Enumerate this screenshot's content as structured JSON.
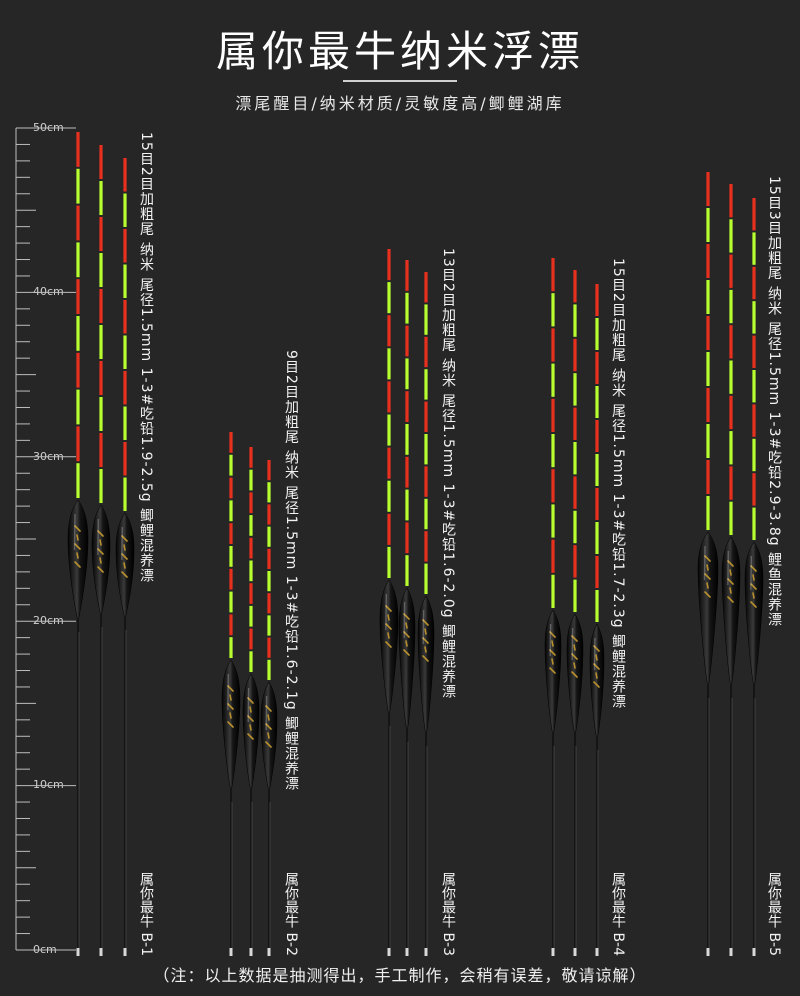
{
  "header": {
    "title": "属你最牛纳米浮漂",
    "subtitle": "漂尾醒目/纳米材质/灵敏度高/鲫鲤湖库"
  },
  "ruler": {
    "labels": [
      "50cm",
      "40cm",
      "30cm",
      "20cm",
      "10cm",
      "0cm"
    ]
  },
  "floats": [
    {
      "spec": "15目2目加粗尾 纳米 尾径1.5mm 1-3#吃铅1.9-2.5g 鲫鲤混养漂",
      "model": "属你最牛 B-1"
    },
    {
      "spec": "9目2目加粗尾 纳米 尾径1.5mm 1-3#吃铅1.6-2.1g 鲫鲤混养漂",
      "model": "属你最牛 B-2"
    },
    {
      "spec": "13目2目加粗尾 纳米 尾径1.5mm 1-3#吃铅1.6-2.0g 鲫鲤混养漂",
      "model": "属你最牛 B-3"
    },
    {
      "spec": "15目2目加粗尾 纳米 尾径1.5mm 1-3#吃铅1.7-2.3g 鲫鲤混养漂",
      "model": "属你最牛 B-4"
    },
    {
      "spec": "15目3目加粗尾 纳米 尾径1.5mm 1-3#吃铅2.9-3.8g 鲤鱼混养漂",
      "model": "属你最牛 B-5"
    }
  ],
  "footer": {
    "note": "（注：以上数据是抽测得出，手工制作，会稍有误差，敬请谅解）"
  },
  "colors": {
    "background": "#262626",
    "tail_red": "#e8301f",
    "tail_green": "#b8ff30",
    "body_black": "#0d0d0d",
    "gold": "#b8912e"
  }
}
